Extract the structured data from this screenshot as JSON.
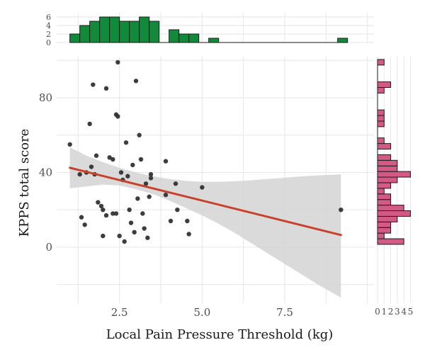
{
  "chart_data": {
    "type": "scatter",
    "title": "",
    "xlabel": "Local Pain Pressure Threshold (kg)",
    "ylabel": "KPPS total score",
    "xlim": [
      0.6,
      10.2
    ],
    "ylim": [
      -30,
      102
    ],
    "x_ticks": [
      2.5,
      5.0,
      7.5
    ],
    "x_tick_labels": [
      "2.5",
      "5.0",
      "7.5"
    ],
    "y_ticks": [
      0,
      40,
      80
    ],
    "y_tick_labels": [
      "0",
      "40",
      "80"
    ],
    "grid": true,
    "points": [
      {
        "x": 1.0,
        "y": 55
      },
      {
        "x": 1.3,
        "y": 39
      },
      {
        "x": 1.35,
        "y": 16
      },
      {
        "x": 1.45,
        "y": 12
      },
      {
        "x": 1.5,
        "y": 40
      },
      {
        "x": 1.6,
        "y": 66
      },
      {
        "x": 1.65,
        "y": 43
      },
      {
        "x": 1.7,
        "y": 87
      },
      {
        "x": 1.75,
        "y": 39
      },
      {
        "x": 1.8,
        "y": 49
      },
      {
        "x": 1.85,
        "y": 24
      },
      {
        "x": 1.95,
        "y": 22
      },
      {
        "x": 2.0,
        "y": 20
      },
      {
        "x": 2.0,
        "y": 6
      },
      {
        "x": 2.1,
        "y": 85
      },
      {
        "x": 2.1,
        "y": 17
      },
      {
        "x": 2.2,
        "y": 48
      },
      {
        "x": 2.3,
        "y": 47
      },
      {
        "x": 2.3,
        "y": 18
      },
      {
        "x": 2.4,
        "y": 71
      },
      {
        "x": 2.4,
        "y": 18
      },
      {
        "x": 2.45,
        "y": 70
      },
      {
        "x": 2.45,
        "y": 99
      },
      {
        "x": 2.5,
        "y": 6
      },
      {
        "x": 2.55,
        "y": 40
      },
      {
        "x": 2.6,
        "y": 36
      },
      {
        "x": 2.65,
        "y": 3
      },
      {
        "x": 2.7,
        "y": 56
      },
      {
        "x": 2.75,
        "y": 38
      },
      {
        "x": 2.8,
        "y": 20
      },
      {
        "x": 2.85,
        "y": 13
      },
      {
        "x": 2.9,
        "y": 44
      },
      {
        "x": 2.95,
        "y": 8
      },
      {
        "x": 3.0,
        "y": 89
      },
      {
        "x": 3.05,
        "y": 26
      },
      {
        "x": 3.1,
        "y": 60
      },
      {
        "x": 3.15,
        "y": 47
      },
      {
        "x": 3.2,
        "y": 18
      },
      {
        "x": 3.25,
        "y": 10
      },
      {
        "x": 3.3,
        "y": 34
      },
      {
        "x": 3.35,
        "y": 5
      },
      {
        "x": 3.4,
        "y": 27
      },
      {
        "x": 3.45,
        "y": 37
      },
      {
        "x": 3.45,
        "y": 39
      },
      {
        "x": 3.9,
        "y": 46
      },
      {
        "x": 3.9,
        "y": 28
      },
      {
        "x": 4.05,
        "y": 14
      },
      {
        "x": 4.2,
        "y": 34
      },
      {
        "x": 4.25,
        "y": 20
      },
      {
        "x": 4.55,
        "y": 14
      },
      {
        "x": 4.6,
        "y": 7
      },
      {
        "x": 5.0,
        "y": 32
      },
      {
        "x": 9.2,
        "y": 20
      }
    ],
    "fit_line": {
      "x": [
        1.0,
        9.2
      ],
      "y": [
        42.5,
        6.5
      ]
    },
    "confidence_band": {
      "x": [
        1.0,
        1.5,
        2.0,
        2.5,
        3.0,
        3.5,
        4.0,
        4.5,
        5.0,
        5.5,
        6.0,
        6.5,
        7.0,
        7.5,
        8.0,
        8.5,
        9.2
      ],
      "upper": [
        53.5,
        49.0,
        45.5,
        42.5,
        40.0,
        38.0,
        36.5,
        35.5,
        35.0,
        35.0,
        35.3,
        35.8,
        36.5,
        37.2,
        37.9,
        38.4,
        39.0
      ],
      "lower": [
        31.5,
        32.5,
        33.5,
        33.0,
        31.0,
        28.5,
        25.0,
        21.0,
        17.0,
        12.5,
        7.5,
        2.0,
        -3.5,
        -9.0,
        -14.5,
        -20.0,
        -27.0
      ]
    },
    "top_histogram": {
      "y_ticks": [
        0,
        2,
        4,
        6
      ],
      "y_tick_labels": [
        "0",
        "2",
        "4",
        "6"
      ],
      "ylim": [
        0,
        7
      ],
      "bins": [
        {
          "start": 1.0,
          "end": 1.3,
          "count": 2
        },
        {
          "start": 1.3,
          "end": 1.6,
          "count": 4
        },
        {
          "start": 1.6,
          "end": 1.9,
          "count": 5
        },
        {
          "start": 1.9,
          "end": 2.2,
          "count": 6
        },
        {
          "start": 2.2,
          "end": 2.5,
          "count": 6
        },
        {
          "start": 2.5,
          "end": 2.8,
          "count": 5
        },
        {
          "start": 2.8,
          "end": 3.1,
          "count": 5
        },
        {
          "start": 3.1,
          "end": 3.4,
          "count": 6
        },
        {
          "start": 3.4,
          "end": 3.7,
          "count": 5
        },
        {
          "start": 3.7,
          "end": 4.0,
          "count": 0
        },
        {
          "start": 4.0,
          "end": 4.3,
          "count": 3
        },
        {
          "start": 4.3,
          "end": 4.6,
          "count": 2
        },
        {
          "start": 4.6,
          "end": 4.9,
          "count": 2
        },
        {
          "start": 4.9,
          "end": 5.2,
          "count": 0
        },
        {
          "start": 5.2,
          "end": 5.5,
          "count": 1
        },
        {
          "start": 9.1,
          "end": 9.4,
          "count": 1
        }
      ],
      "color": "#118a3c"
    },
    "right_histogram": {
      "x_ticks": [
        0,
        1,
        2,
        3,
        4,
        5
      ],
      "x_tick_labels": [
        "0",
        "1",
        "2",
        "3",
        "4",
        "5"
      ],
      "xlim": [
        0,
        5.6
      ],
      "bins": [
        {
          "start": 1.5,
          "end": 4.5,
          "count": 4
        },
        {
          "start": 4.5,
          "end": 7.5,
          "count": 1
        },
        {
          "start": 7.5,
          "end": 10.5,
          "count": 2
        },
        {
          "start": 10.5,
          "end": 13.5,
          "count": 2
        },
        {
          "start": 13.5,
          "end": 16.5,
          "count": 3
        },
        {
          "start": 16.5,
          "end": 19.5,
          "count": 5
        },
        {
          "start": 19.5,
          "end": 22.5,
          "count": 4
        },
        {
          "start": 22.5,
          "end": 25.5,
          "count": 2
        },
        {
          "start": 25.5,
          "end": 28.5,
          "count": 2
        },
        {
          "start": 28.5,
          "end": 31.5,
          "count": 1
        },
        {
          "start": 31.5,
          "end": 34.5,
          "count": 2
        },
        {
          "start": 34.5,
          "end": 37.5,
          "count": 3
        },
        {
          "start": 37.5,
          "end": 40.5,
          "count": 5
        },
        {
          "start": 40.5,
          "end": 43.5,
          "count": 3
        },
        {
          "start": 43.5,
          "end": 46.5,
          "count": 3
        },
        {
          "start": 46.5,
          "end": 49.5,
          "count": 2
        },
        {
          "start": 52.5,
          "end": 55.5,
          "count": 2
        },
        {
          "start": 55.5,
          "end": 58.5,
          "count": 1
        },
        {
          "start": 64.5,
          "end": 67.5,
          "count": 1
        },
        {
          "start": 67.5,
          "end": 70.5,
          "count": 1
        },
        {
          "start": 70.5,
          "end": 73.5,
          "count": 1
        },
        {
          "start": 82.5,
          "end": 85.5,
          "count": 1
        },
        {
          "start": 85.5,
          "end": 88.5,
          "count": 2
        },
        {
          "start": 97.5,
          "end": 100.5,
          "count": 1
        }
      ],
      "color": "#d45a86"
    },
    "colors": {
      "points": "#333333",
      "fit_line": "#c8412a",
      "band": "#d3d3d3",
      "grid": "#e6e6e6"
    }
  }
}
